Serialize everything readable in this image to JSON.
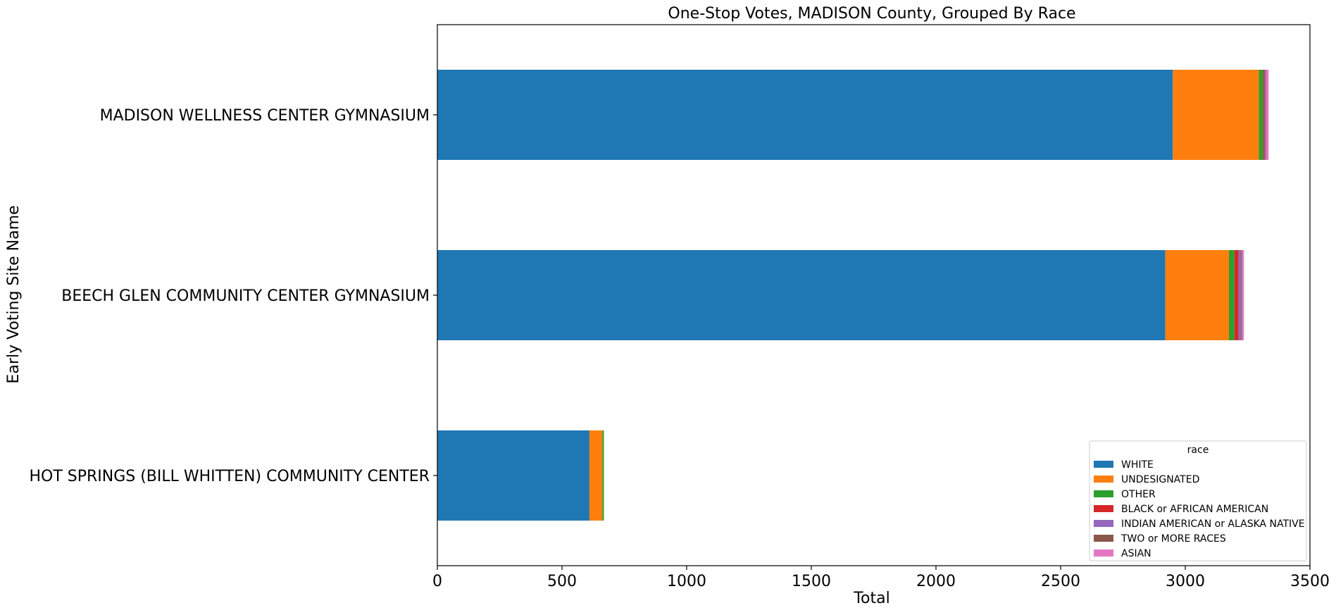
{
  "chart_data": {
    "type": "bar",
    "orientation": "horizontal",
    "stacked": true,
    "title": "One-Stop Votes, MADISON County, Grouped By Race",
    "xlabel": "Total",
    "ylabel": "Early Voting Site Name",
    "xlim": [
      0,
      3500
    ],
    "xticks": [
      "0",
      "500",
      "1000",
      "1500",
      "2000",
      "2500",
      "3000",
      "3500"
    ],
    "grid": false,
    "legend_title": "race",
    "legend_position": "lower-right",
    "categories": [
      "MADISON WELLNESS CENTER GYMNASIUM",
      "BEECH GLEN COMMUNITY CENTER GYMNASIUM",
      "HOT SPRINGS (BILL WHITTEN) COMMUNITY CENTER"
    ],
    "series": [
      {
        "name": "WHITE",
        "color": "#1f77b4",
        "values": [
          2950,
          2920,
          610
        ]
      },
      {
        "name": "UNDESIGNATED",
        "color": "#ff7f0e",
        "values": [
          345,
          255,
          52
        ]
      },
      {
        "name": "OTHER",
        "color": "#2ca02c",
        "values": [
          18,
          22,
          6
        ]
      },
      {
        "name": "BLACK or AFRICAN AMERICAN",
        "color": "#d62728",
        "values": [
          5,
          17,
          0
        ]
      },
      {
        "name": "INDIAN AMERICAN or ALASKA NATIVE",
        "color": "#9467bd",
        "values": [
          4,
          10,
          0
        ]
      },
      {
        "name": "TWO or MORE RACES",
        "color": "#8c564b",
        "values": [
          2,
          4,
          0
        ]
      },
      {
        "name": "ASIAN",
        "color": "#e377c2",
        "values": [
          10,
          7,
          0
        ]
      }
    ]
  }
}
